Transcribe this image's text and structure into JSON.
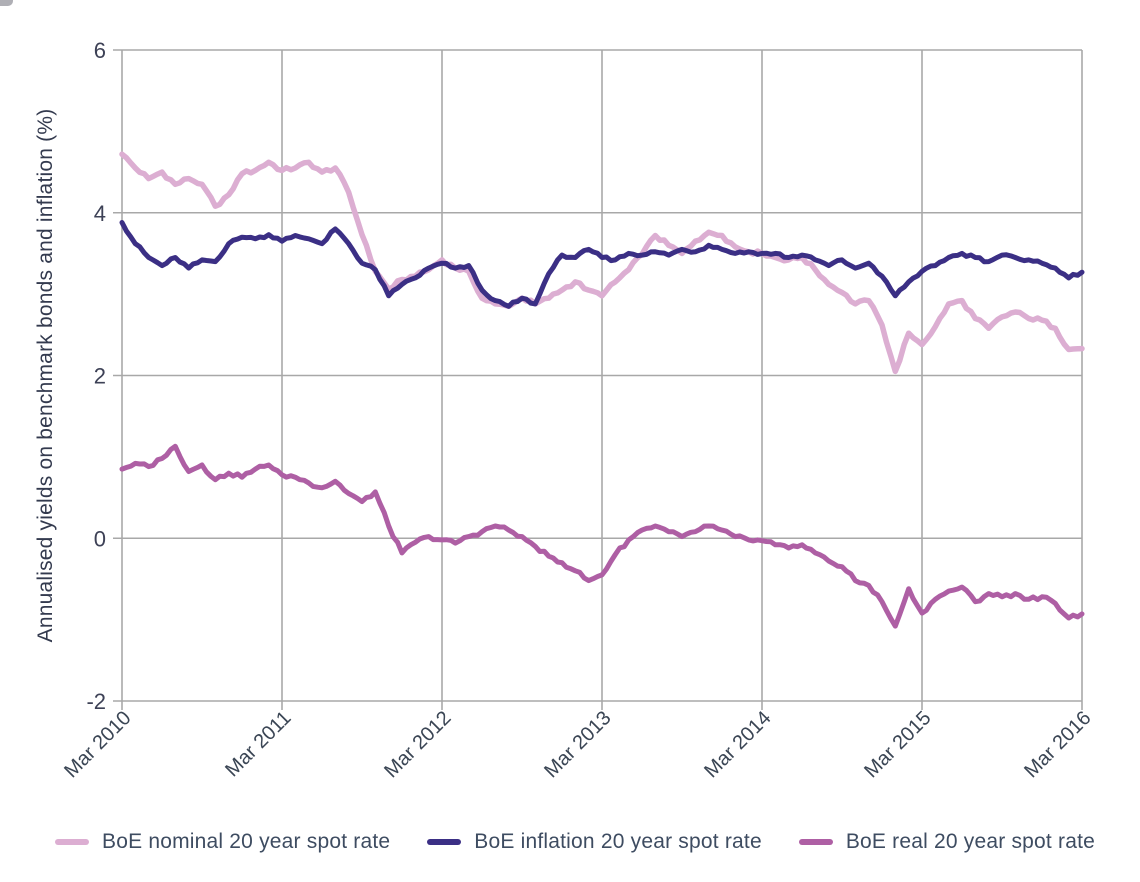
{
  "page": {
    "background": "#ffffff"
  },
  "chart_data": {
    "type": "line",
    "title": "",
    "xlabel": "",
    "ylabel": "Annualised yields on benchmark bonds and inflation (%)",
    "ylim": [
      -2,
      6
    ],
    "yticks": [
      6,
      4,
      2,
      0,
      -2
    ],
    "x_tick_labels": [
      "Mar 2010",
      "Mar 2011",
      "Mar 2012",
      "Mar 2013",
      "Mar 2014",
      "Mar 2015",
      "Mar 2016"
    ],
    "x_frequency": "monthly",
    "x_start_label": "Mar 2010",
    "x_end_label": "Mar 2016",
    "grid": "both",
    "legend_position": "bottom",
    "axis_color": "#a8a8a8",
    "tick_label_color": "#3d4156",
    "axis_title_color": "#333a4e",
    "legend_text_color": "#3e4c61",
    "draw_order": [
      0,
      2,
      1
    ],
    "series": [
      {
        "name": "BoE nominal 20 year spot rate",
        "color": "#dcaed2",
        "values": [
          4.72,
          4.55,
          4.42,
          4.5,
          4.35,
          4.42,
          4.35,
          4.08,
          4.22,
          4.48,
          4.52,
          4.62,
          4.52,
          4.55,
          4.62,
          4.5,
          4.55,
          4.25,
          3.73,
          3.28,
          3.06,
          3.18,
          3.22,
          3.3,
          3.42,
          3.32,
          3.28,
          2.95,
          2.88,
          2.85,
          2.95,
          2.88,
          2.95,
          3.05,
          3.15,
          3.05,
          2.98,
          3.15,
          3.3,
          3.49,
          3.72,
          3.6,
          3.5,
          3.65,
          3.76,
          3.72,
          3.58,
          3.52,
          3.5,
          3.45,
          3.42,
          3.45,
          3.3,
          3.12,
          3.02,
          2.88,
          2.92,
          2.62,
          2.05,
          2.52,
          2.38,
          2.6,
          2.88,
          2.92,
          2.7,
          2.58,
          2.72,
          2.78,
          2.7,
          2.68,
          2.58,
          2.32,
          2.33
        ]
      },
      {
        "name": "BoE inflation 20 year spot rate",
        "color": "#3b2f85",
        "values": [
          3.88,
          3.62,
          3.45,
          3.35,
          3.45,
          3.32,
          3.42,
          3.4,
          3.62,
          3.7,
          3.68,
          3.73,
          3.65,
          3.72,
          3.68,
          3.62,
          3.8,
          3.62,
          3.38,
          3.3,
          2.98,
          3.12,
          3.2,
          3.32,
          3.38,
          3.32,
          3.35,
          3.05,
          2.92,
          2.85,
          2.95,
          2.88,
          3.25,
          3.48,
          3.45,
          3.55,
          3.45,
          3.42,
          3.5,
          3.48,
          3.52,
          3.48,
          3.55,
          3.52,
          3.6,
          3.55,
          3.5,
          3.52,
          3.5,
          3.5,
          3.45,
          3.48,
          3.42,
          3.35,
          3.42,
          3.32,
          3.38,
          3.22,
          2.98,
          3.15,
          3.28,
          3.35,
          3.45,
          3.5,
          3.45,
          3.4,
          3.48,
          3.45,
          3.42,
          3.38,
          3.32,
          3.2,
          3.27
        ]
      },
      {
        "name": "BoE real 20 year spot rate",
        "color": "#ae5fa4",
        "values": [
          0.85,
          0.92,
          0.88,
          0.98,
          1.13,
          0.82,
          0.9,
          0.72,
          0.8,
          0.75,
          0.85,
          0.9,
          0.78,
          0.75,
          0.68,
          0.62,
          0.7,
          0.55,
          0.45,
          0.57,
          0.15,
          -0.18,
          -0.05,
          0.02,
          -0.02,
          -0.06,
          0.02,
          0.08,
          0.15,
          0.1,
          0.02,
          -0.1,
          -0.22,
          -0.3,
          -0.4,
          -0.52,
          -0.45,
          -0.2,
          -0.02,
          0.1,
          0.15,
          0.08,
          0.02,
          0.08,
          0.15,
          0.1,
          0.02,
          -0.02,
          -0.03,
          -0.08,
          -0.12,
          -0.08,
          -0.18,
          -0.28,
          -0.35,
          -0.52,
          -0.58,
          -0.78,
          -1.08,
          -0.62,
          -0.92,
          -0.75,
          -0.65,
          -0.6,
          -0.78,
          -0.68,
          -0.72,
          -0.68,
          -0.75,
          -0.72,
          -0.8,
          -0.98,
          -0.93
        ]
      }
    ]
  }
}
